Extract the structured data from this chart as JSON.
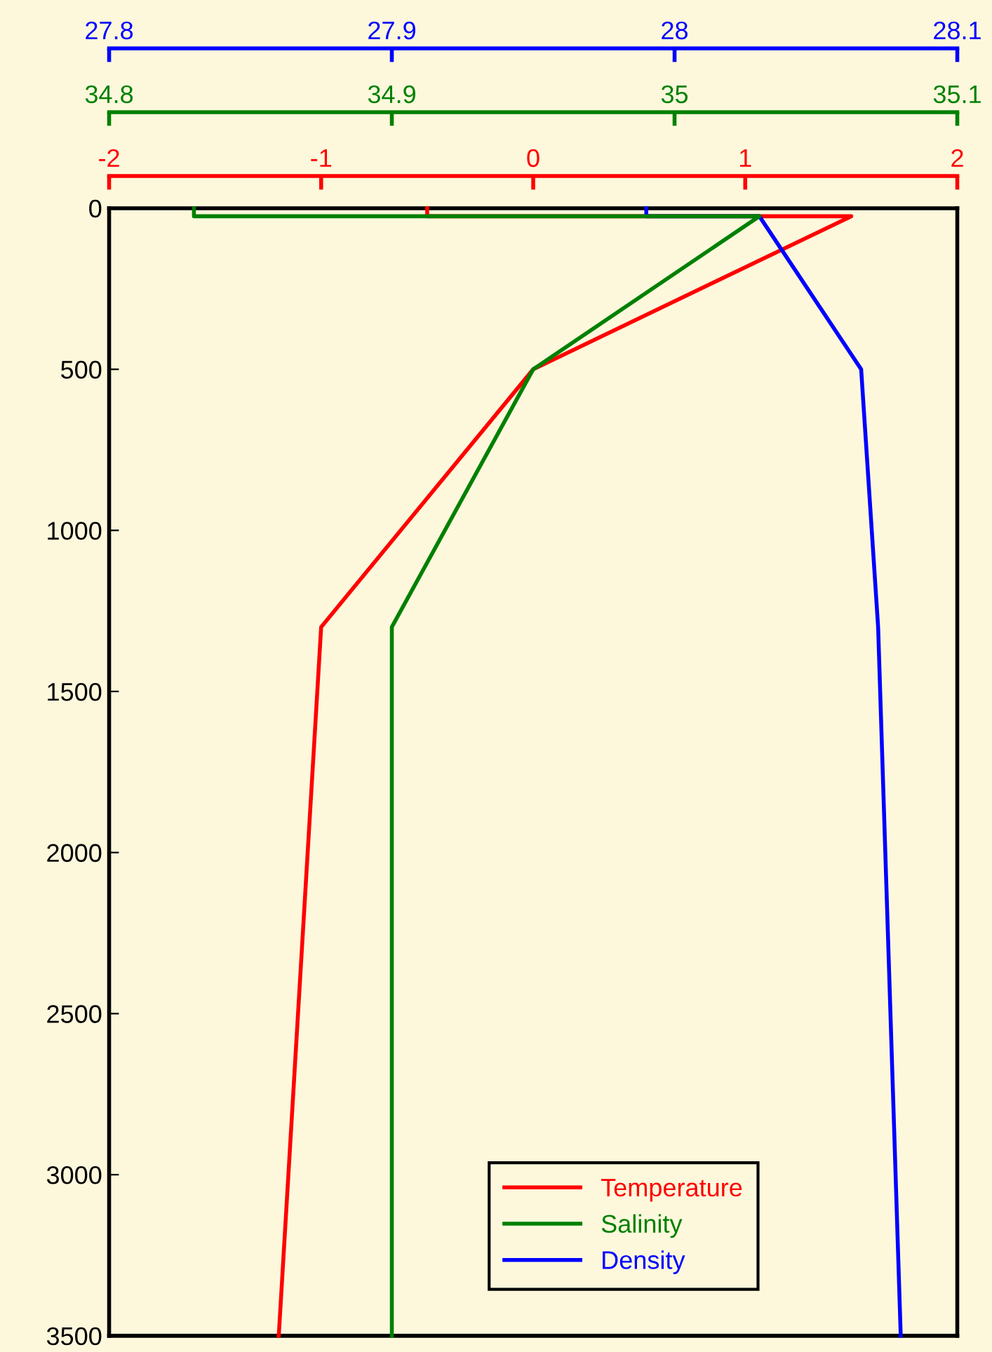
{
  "chart_data": [
    {
      "type": "line",
      "xlim": [
        -2,
        2
      ],
      "xticks": [
        -2,
        -1,
        0,
        1,
        2
      ],
      "x2lim": [
        34.8,
        35.1
      ],
      "x2ticks": [
        34.8,
        34.9,
        35,
        35.1
      ],
      "ylim": [
        3500,
        0
      ],
      "yticks": [
        0,
        500,
        1000,
        1500,
        2000,
        2500,
        3000,
        3500
      ],
      "legend": "bottom right",
      "series": [
        {
          "name": "Temperature",
          "color": "#ff0000",
          "x": [
            -0.5,
            -0.5,
            1.5,
            0,
            -1,
            -1.2
          ],
          "values": [
            0,
            25,
            25,
            500,
            1300,
            3500
          ]
        },
        {
          "name": "Salinity",
          "color": "#008000",
          "axis": "x2",
          "x": [
            34.83,
            34.83,
            35.03,
            34.95,
            34.9,
            34.9
          ],
          "values": [
            0,
            25,
            25,
            500,
            1300,
            3500
          ]
        }
      ]
    },
    {
      "type": "line",
      "xlim": [
        27.8,
        28.1
      ],
      "xticks": [
        27.8,
        27.9,
        28,
        28.1
      ],
      "ylim": [
        3500,
        0
      ],
      "tick_labels": "x",
      "series": [
        {
          "name": "Density",
          "color": "#0000ff",
          "x": [
            27.99,
            27.99,
            28.03,
            28.066,
            28.072,
            28.08
          ],
          "values": [
            0,
            25,
            25,
            500,
            1300,
            3500
          ]
        }
      ]
    }
  ]
}
